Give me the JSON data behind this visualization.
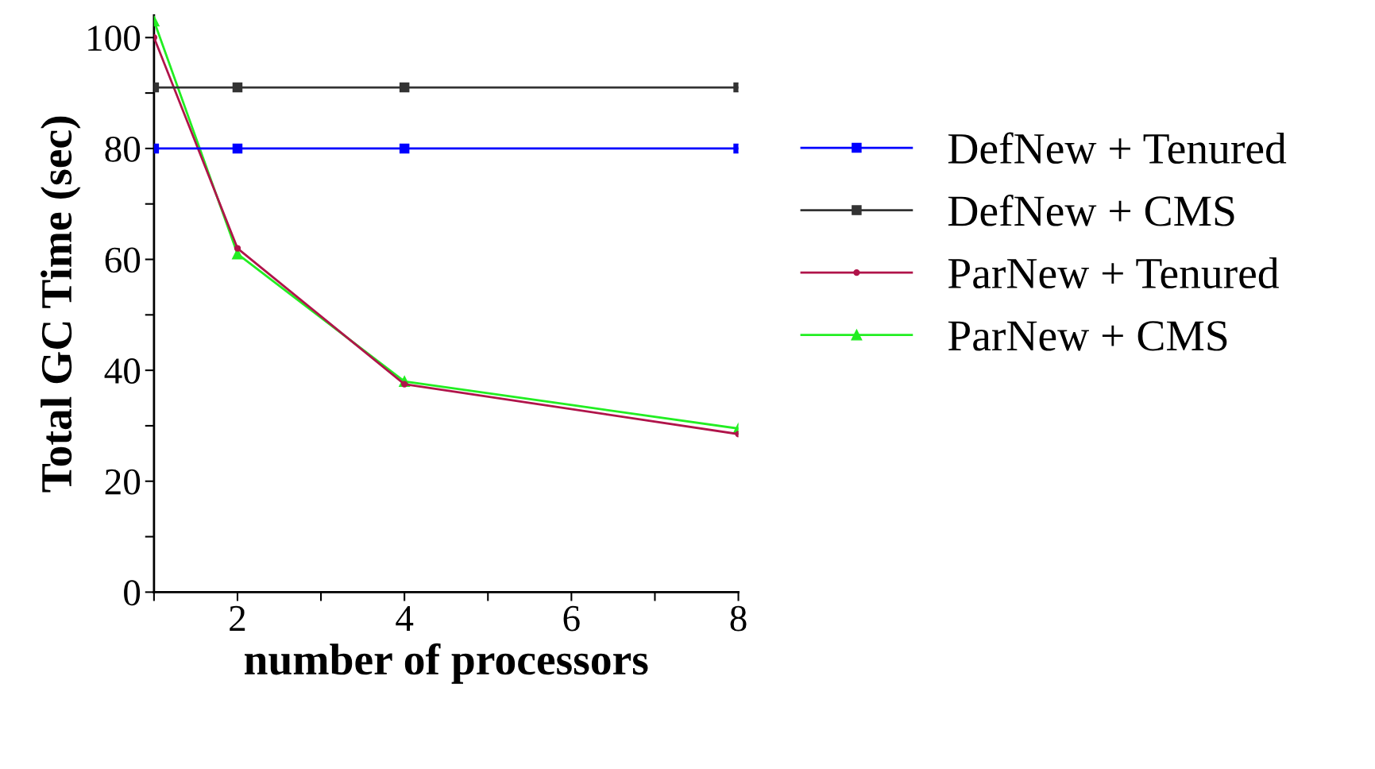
{
  "chart_data": {
    "type": "line",
    "xlabel": "number of processors",
    "ylabel": "Total GC Time (sec)",
    "x": [
      1,
      2,
      4,
      8
    ],
    "series": [
      {
        "name": "DefNew + Tenured",
        "color": "#0000ff",
        "values": [
          80,
          80,
          80,
          80
        ],
        "marker": "square"
      },
      {
        "name": "DefNew + CMS",
        "color": "#333333",
        "values": [
          91,
          91,
          91,
          91
        ],
        "marker": "square"
      },
      {
        "name": "ParNew + Tenured",
        "color": "#b0144a",
        "values": [
          100,
          62,
          37.5,
          28.5
        ],
        "marker": "circle"
      },
      {
        "name": "ParNew + CMS",
        "color": "#22ee22",
        "values": [
          103,
          61,
          38,
          29.5
        ],
        "marker": "triangle"
      }
    ],
    "xlim": [
      1,
      8
    ],
    "ylim": [
      0,
      104
    ],
    "xticks": [
      {
        "value": 1,
        "label": null
      },
      2,
      {
        "value": 3,
        "label": null
      },
      4,
      {
        "value": 5,
        "label": null
      },
      6,
      {
        "value": 7,
        "label": null
      },
      8
    ],
    "yticks": [
      0,
      {
        "value": 10,
        "label": null
      },
      20,
      {
        "value": 30,
        "label": null
      },
      40,
      {
        "value": 50,
        "label": null
      },
      60,
      {
        "value": 70,
        "label": null
      },
      80,
      {
        "value": 90,
        "label": null
      },
      100
    ],
    "legend": "right",
    "grid": false
  }
}
